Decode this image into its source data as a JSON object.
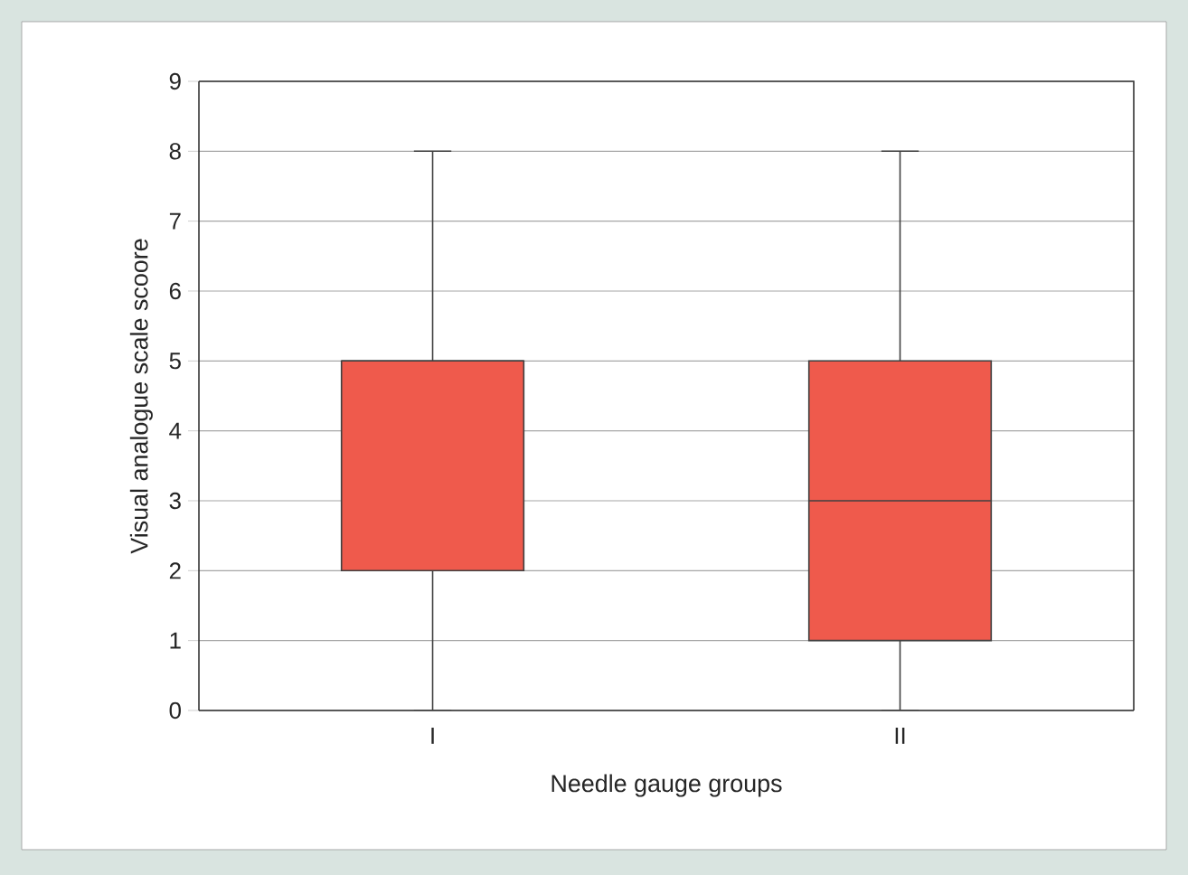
{
  "chart_data": {
    "type": "box",
    "xlabel": "Needle gauge groups",
    "ylabel": "Visual analogue scale scoore",
    "categories": [
      "I",
      "II"
    ],
    "series": [
      {
        "color": "#ef5a4c",
        "boxes": [
          {
            "low": 0,
            "q1": 2,
            "median": 5,
            "q3": 5,
            "high": 8
          },
          {
            "low": 0,
            "q1": 1,
            "median": 3,
            "q3": 5,
            "high": 8
          }
        ]
      }
    ],
    "ylim": [
      0,
      9
    ],
    "yticks": [
      0,
      1,
      2,
      3,
      4,
      5,
      6,
      7,
      8,
      9
    ],
    "grid": "y"
  }
}
